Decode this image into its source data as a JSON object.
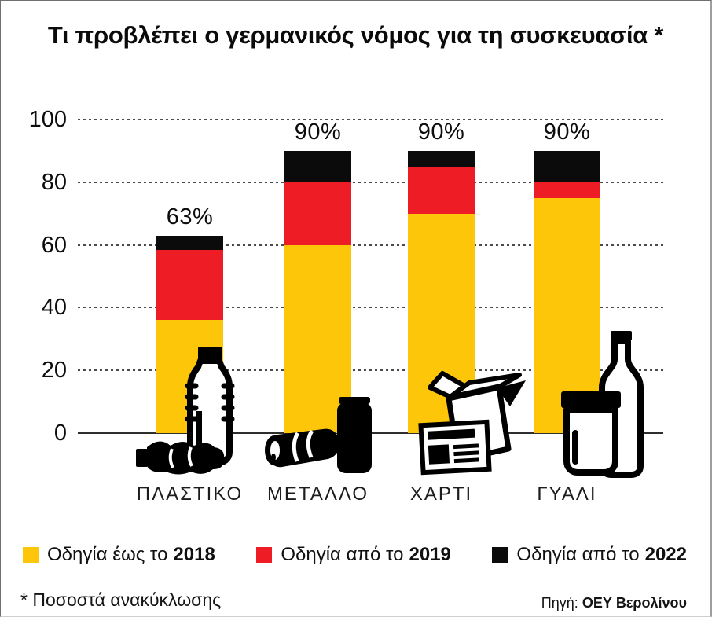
{
  "title": "Τι προβλέπει ο γερμανικός νόμος για τη συσκευασία *",
  "footnote": "* Ποσοστά ανακύκλωσης",
  "source": {
    "label": "Πηγή:",
    "value": "ΟΕΥ Βερολίνου"
  },
  "colors": {
    "yellow_2018": "#FDC608",
    "red_2019": "#EE1C25",
    "black_2022": "#0b0b0b"
  },
  "legend": [
    {
      "key": "until-2018",
      "label": "Οδηγία έως το",
      "year": "2018",
      "color": "#FDC608"
    },
    {
      "key": "from-2019",
      "label": "Οδηγία από το",
      "year": "2019",
      "color": "#EE1C25"
    },
    {
      "key": "from-2022",
      "label": "Οδηγία από το",
      "year": "2022",
      "color": "#0b0b0b"
    }
  ],
  "chart_data": {
    "type": "bar",
    "stacked": true,
    "title": "Τι προβλέπει ο γερμανικός νόμος για τη συσκευασία *",
    "categories": [
      "ΠΛΑΣΤΙΚΟ",
      "ΜΕΤΑΛΛΟ",
      "ΧΑΡΤΙ",
      "ΓΥΑΛΙ"
    ],
    "category_keys": [
      "plastiko",
      "metallo",
      "charti",
      "gyali"
    ],
    "total_labels": [
      "63%",
      "90%",
      "90%",
      "90%"
    ],
    "totals": [
      63,
      90,
      90,
      90
    ],
    "series": [
      {
        "key": "until-2018",
        "name": "Οδηγία έως το 2018",
        "color": "#FDC608",
        "values": [
          36,
          60,
          70,
          75
        ]
      },
      {
        "key": "from-2019",
        "name": "Οδηγία από το 2019",
        "color": "#EE1C25",
        "values": [
          22.5,
          20,
          15,
          5
        ]
      },
      {
        "key": "from-2022",
        "name": "Οδηγία από το 2022",
        "color": "#0b0b0b",
        "values": [
          4.5,
          10,
          5,
          10
        ]
      }
    ],
    "cumulative_levels": [
      [
        36,
        58.5,
        63
      ],
      [
        60,
        80,
        90
      ],
      [
        70,
        85,
        90
      ],
      [
        75,
        80,
        90
      ]
    ],
    "y_ticks": [
      0,
      20,
      40,
      60,
      80,
      100
    ],
    "ylim": [
      0,
      100
    ],
    "grid": "dotted horizontal, solid baseline at 0",
    "legend_position": "bottom",
    "icons": [
      "plastic-bottles-icon",
      "metal-cans-icon",
      "paper-box-newspaper-icon",
      "glass-jar-bottle-icon"
    ],
    "unit": "percent (recycling quota)"
  }
}
